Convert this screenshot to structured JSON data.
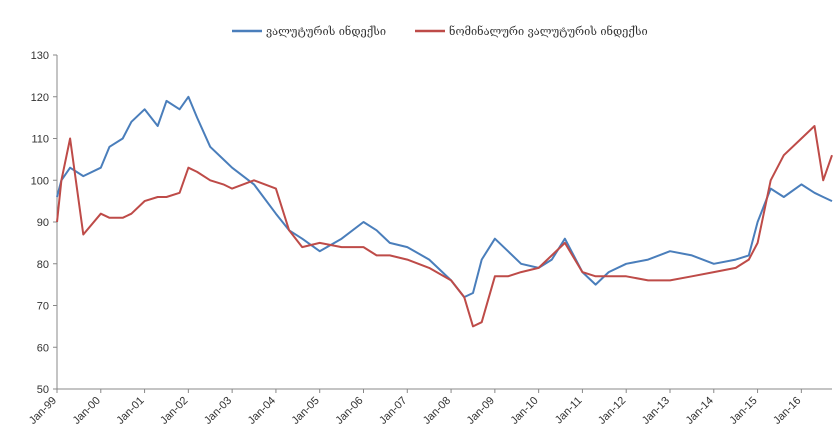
{
  "chart_data": {
    "type": "line",
    "title": "",
    "xlabel": "",
    "ylabel": "",
    "ylim": [
      50,
      130
    ],
    "yticks": [
      50,
      60,
      70,
      80,
      90,
      100,
      110,
      120,
      130
    ],
    "xlim": [
      1999.0,
      2016.7
    ],
    "xtick_labels": [
      "Jan-99",
      "Jan-00",
      "Jan-01",
      "Jan-02",
      "Jan-03",
      "Jan-04",
      "Jan-05",
      "Jan-06",
      "Jan-07",
      "Jan-08",
      "Jan-09",
      "Jan-10",
      "Jan-11",
      "Jan-12",
      "Jan-13",
      "Jan-14",
      "Jan-15",
      "Jan-16"
    ],
    "grid": false,
    "legend": "top-center",
    "colors": {
      "series1": "#4a7ebb",
      "series2": "#be4b48",
      "axis": "#888888"
    },
    "x": [
      1999.0,
      1999.1,
      1999.3,
      1999.6,
      2000.0,
      2000.2,
      2000.5,
      2000.7,
      2001.0,
      2001.3,
      2001.5,
      2001.8,
      2002.0,
      2002.2,
      2002.5,
      2002.8,
      2003.0,
      2003.5,
      2004.0,
      2004.3,
      2004.6,
      2005.0,
      2005.5,
      2006.0,
      2006.3,
      2006.6,
      2007.0,
      2007.5,
      2008.0,
      2008.3,
      2008.5,
      2008.7,
      2009.0,
      2009.3,
      2009.6,
      2010.0,
      2010.3,
      2010.6,
      2011.0,
      2011.3,
      2011.6,
      2012.0,
      2012.5,
      2013.0,
      2013.5,
      2014.0,
      2014.5,
      2014.8,
      2015.0,
      2015.3,
      2015.6,
      2016.0,
      2016.3,
      2016.5,
      2016.7
    ],
    "series": [
      {
        "name": "ვალუტურის ინდექსი",
        "values": [
          96,
          100,
          103,
          101,
          103,
          108,
          110,
          114,
          117,
          113,
          119,
          117,
          120,
          115,
          108,
          105,
          103,
          99,
          92,
          88,
          86,
          83,
          86,
          90,
          88,
          85,
          84,
          81,
          76,
          72,
          73,
          81,
          86,
          83,
          80,
          79,
          81,
          86,
          78,
          75,
          78,
          80,
          81,
          83,
          82,
          80,
          81,
          82,
          90,
          98,
          96,
          99,
          97,
          96,
          95
        ]
      },
      {
        "name": "ნომინალური ვალუტურის ინდექსი",
        "values": [
          90,
          100,
          110,
          87,
          92,
          91,
          91,
          92,
          95,
          96,
          96,
          97,
          103,
          102,
          100,
          99,
          98,
          100,
          98,
          88,
          84,
          85,
          84,
          84,
          82,
          82,
          81,
          79,
          76,
          72,
          65,
          66,
          77,
          77,
          78,
          79,
          82,
          85,
          78,
          77,
          77,
          77,
          76,
          76,
          77,
          78,
          79,
          81,
          85,
          100,
          106,
          110,
          113,
          100,
          106
        ]
      }
    ]
  }
}
